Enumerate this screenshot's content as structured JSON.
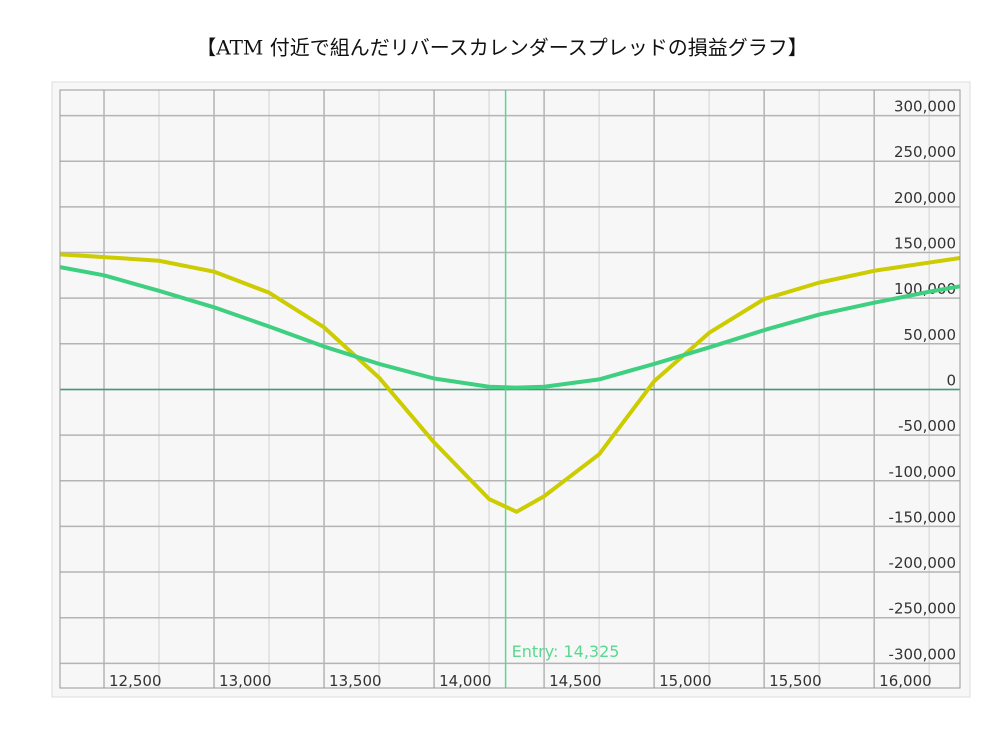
{
  "chart_data": {
    "type": "line",
    "title": "【ATM 付近で組んだリバースカレンダースプレッドの損益グラフ】",
    "x": [
      12300,
      12500,
      12750,
      13000,
      13250,
      13500,
      13750,
      14000,
      14250,
      14375,
      14500,
      14750,
      15000,
      15250,
      15500,
      15750,
      16000,
      16250,
      16390
    ],
    "series": [
      {
        "color": "#cccc00",
        "values": [
          148000,
          145000,
          141000,
          129000,
          106000,
          68000,
          13000,
          -58000,
          -120000,
          -134000,
          -117000,
          -71000,
          9000,
          62000,
          99000,
          117000,
          130000,
          139000,
          144000
        ]
      },
      {
        "color": "#3fcf80",
        "values": [
          134000,
          125000,
          108000,
          90000,
          69000,
          47000,
          28000,
          12000,
          3000,
          2000,
          3000,
          11000,
          28000,
          46000,
          65000,
          82000,
          95000,
          107000,
          113000
        ]
      }
    ],
    "xlim": [
      12300,
      16390
    ],
    "ylim": [
      -327000,
      328000
    ],
    "xticks": [
      {
        "value": 12500,
        "label": "12,500"
      },
      {
        "value": 13000,
        "label": "13,000"
      },
      {
        "value": 13500,
        "label": "13,500"
      },
      {
        "value": 14000,
        "label": "14,000"
      },
      {
        "value": 14500,
        "label": "14,500"
      },
      {
        "value": 15000,
        "label": "15,000"
      },
      {
        "value": 15500,
        "label": "15,500"
      },
      {
        "value": 16000,
        "label": "16,000"
      }
    ],
    "x_minor_ticks": [
      12750,
      13250,
      13750,
      14250,
      14750,
      15250,
      15750,
      16250
    ],
    "yticks": [
      {
        "value": 300000,
        "label": "300,000"
      },
      {
        "value": 250000,
        "label": "250,000"
      },
      {
        "value": 200000,
        "label": "200,000"
      },
      {
        "value": 150000,
        "label": "150,000"
      },
      {
        "value": 100000,
        "label": "100,000"
      },
      {
        "value": 50000,
        "label": "50,000"
      },
      0,
      {
        "value": -50000,
        "label": "-50,000"
      },
      {
        "value": -100000,
        "label": "-100,000"
      },
      {
        "value": -150000,
        "label": "-150,000"
      },
      {
        "value": -200000,
        "label": "-200,000"
      },
      {
        "value": -250000,
        "label": "-250,000"
      },
      {
        "value": -300000,
        "label": "-300,000"
      }
    ],
    "grid": true,
    "zero_line_color": "#3a9e78",
    "annotations": [
      {
        "x": 14325,
        "label": "Entry: 14,325",
        "color": "#5ad890"
      }
    ]
  }
}
